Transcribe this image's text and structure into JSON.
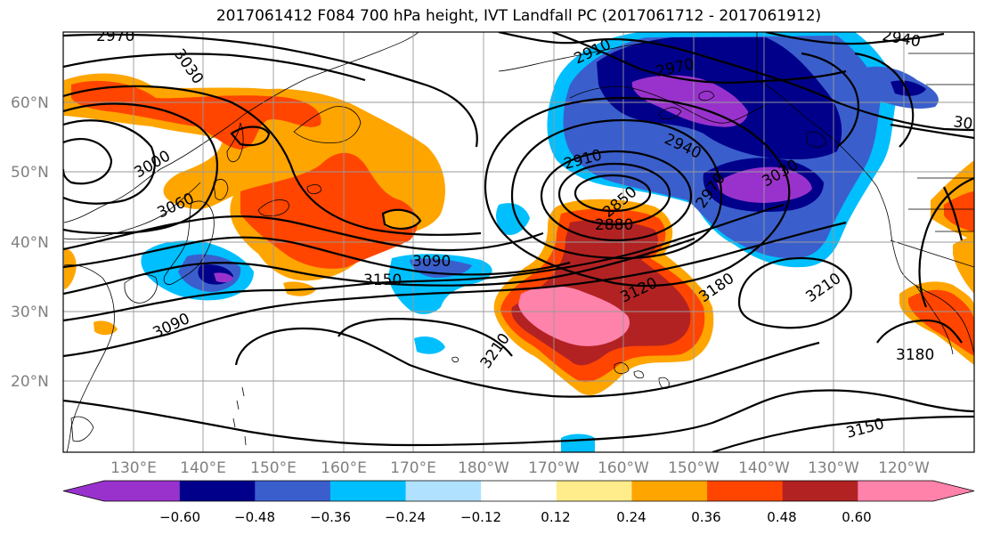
{
  "title": "2017061412 F084 700 hPa height, IVT Landfall PC (2017061712 - 2017061912)",
  "map": {
    "lat_labels": [
      "60°N",
      "50°N",
      "40°N",
      "30°N",
      "20°N"
    ],
    "lon_labels": [
      "130°E",
      "140°E",
      "150°E",
      "160°E",
      "170°E",
      "180°W",
      "170°W",
      "160°W",
      "150°W",
      "140°W",
      "130°W",
      "120°W"
    ],
    "contour_labels": [
      "2970",
      "3030",
      "2910",
      "2970",
      "2940",
      "30",
      "3000",
      "3060",
      "2910",
      "2940",
      "2850",
      "2880",
      "3030",
      "2970",
      "3090",
      "3150",
      "3120",
      "3180",
      "3210",
      "3090",
      "3210",
      "3180",
      "3150"
    ]
  },
  "colorbar": {
    "tick_labels": [
      "−0.60",
      "−0.48",
      "−0.36",
      "−0.24",
      "−0.12",
      "0.12",
      "0.24",
      "0.36",
      "0.48",
      "0.60"
    ],
    "colors": [
      "#9932cc",
      "#00008b",
      "#3a5fcd",
      "#00bfff",
      "#b0e2ff",
      "#ffffff",
      "#ffec8b",
      "#ffa500",
      "#ff4500",
      "#b22222",
      "#ff82ab"
    ]
  }
}
